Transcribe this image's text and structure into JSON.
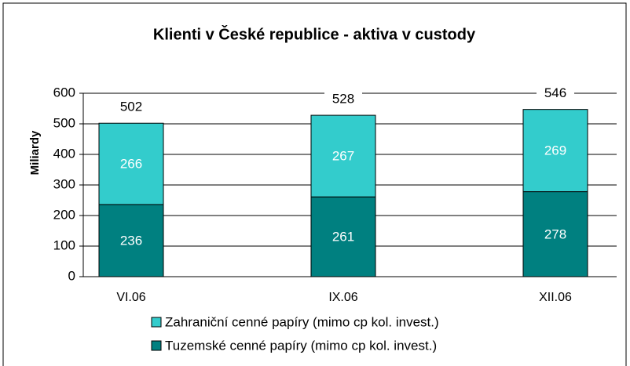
{
  "chart_data": {
    "type": "stacked_bar",
    "title": "Klienti v České republice - aktiva v custody",
    "y_label": "Miliardy",
    "categories": [
      "VI.06",
      "IX.06",
      "XII.06"
    ],
    "series": [
      {
        "name": "Tuzemské cenné papíry (mimo cp kol. invest.)",
        "color": "#008080",
        "values": [
          236,
          261,
          278
        ]
      },
      {
        "name": "Zahraniční cenné papíry (mimo cp kol. invest.)",
        "color": "#33cccc",
        "values": [
          266,
          267,
          269
        ]
      }
    ],
    "totals": [
      502,
      528,
      546
    ],
    "ylim": [
      0,
      600
    ],
    "yticks": [
      0,
      100,
      200,
      300,
      400,
      500,
      600
    ],
    "grid": true
  }
}
